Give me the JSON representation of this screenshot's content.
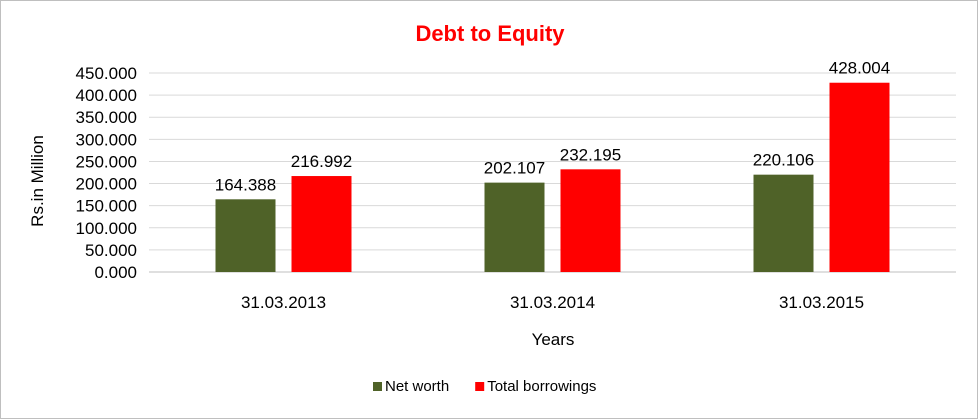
{
  "chart_data": {
    "type": "bar",
    "title": "Debt to Equity",
    "xlabel": "Years",
    "ylabel": "Rs.in Million",
    "categories": [
      "31.03.2013",
      "31.03.2014",
      "31.03.2015"
    ],
    "series": [
      {
        "name": "Net worth",
        "values": [
          164.388,
          202.107,
          220.106
        ],
        "labels": [
          "164.388",
          "202.107",
          "220.106"
        ],
        "color": "#4F6228"
      },
      {
        "name": "Total borrowings",
        "values": [
          216.992,
          232.195,
          428.004
        ],
        "labels": [
          "216.992",
          "232.195",
          "428.004"
        ],
        "color": "#FF0000"
      }
    ],
    "ylim": [
      0,
      450
    ],
    "yticks": [
      0,
      50,
      100,
      150,
      200,
      250,
      300,
      350,
      400,
      450
    ],
    "ytick_labels": [
      "0.000",
      "50.000",
      "100.000",
      "150.000",
      "200.000",
      "250.000",
      "300.000",
      "350.000",
      "400.000",
      "450.000"
    ],
    "grid": true,
    "legend_position": "bottom",
    "colors": {
      "title": "#FF0000",
      "grid": "#D9D9D9",
      "axis": "#BFBFBF"
    }
  }
}
